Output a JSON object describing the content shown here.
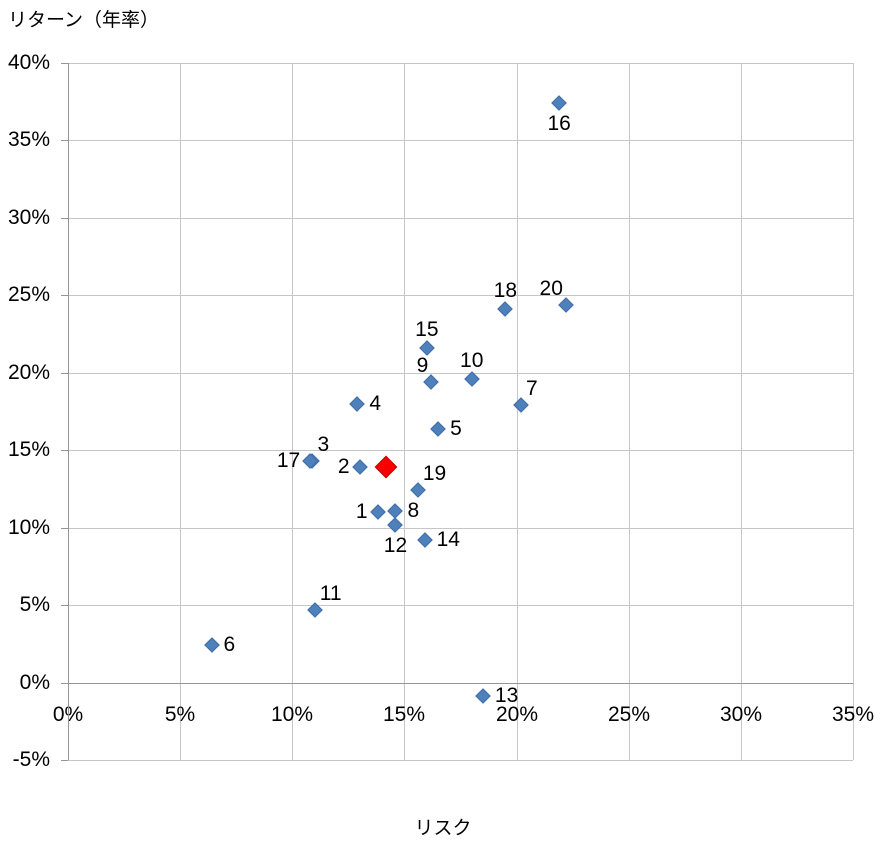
{
  "chart_data": {
    "type": "scatter",
    "title": "",
    "xlabel": "リスク",
    "ylabel": "リターン（年率）",
    "xlim": [
      0,
      35
    ],
    "ylim": [
      -5,
      40
    ],
    "x_tick_step": 5,
    "y_tick_step": 5,
    "x_tick_labels": [
      "0%",
      "5%",
      "10%",
      "15%",
      "20%",
      "25%",
      "30%",
      "35%"
    ],
    "y_tick_labels": [
      "40%",
      "35%",
      "30%",
      "25%",
      "20%",
      "15%",
      "10%",
      "5%",
      "0%",
      "-5%"
    ],
    "grid": "on",
    "legend": "none",
    "axis_unit": "%",
    "colors": {
      "background": "#ffffff",
      "gridline": "#c6c6c6",
      "axis_line": "#959595",
      "text": "#000000",
      "blue_marker": "#4e80bc",
      "red_marker": "#fb0000"
    },
    "series": [
      {
        "marker": "diamond",
        "color": "#4e80bc",
        "marker_size": 12,
        "points": [
          {
            "label": "1",
            "risk": 13.8,
            "return": 11.0,
            "label_pos": "left"
          },
          {
            "label": "2",
            "risk": 13.0,
            "return": 13.9,
            "label_pos": "left"
          },
          {
            "label": "3",
            "risk": 10.9,
            "return": 14.3,
            "label_pos": "above-right"
          },
          {
            "label": "4",
            "risk": 12.9,
            "return": 18.0,
            "label_pos": "right"
          },
          {
            "label": "5",
            "risk": 16.5,
            "return": 16.4,
            "label_pos": "right"
          },
          {
            "label": "6",
            "risk": 6.4,
            "return": 2.4,
            "label_pos": "right"
          },
          {
            "label": "7",
            "risk": 20.2,
            "return": 17.9,
            "label_pos": "above-right"
          },
          {
            "label": "8",
            "risk": 14.6,
            "return": 11.1,
            "label_pos": "right"
          },
          {
            "label": "9",
            "risk": 16.2,
            "return": 19.4,
            "label_pos": "above-left"
          },
          {
            "label": "10",
            "risk": 18.0,
            "return": 19.6,
            "label_pos": "above"
          },
          {
            "label": "11",
            "risk": 11.0,
            "return": 4.7,
            "label_pos": "above-right"
          },
          {
            "label": "12",
            "risk": 14.6,
            "return": 10.2,
            "label_pos": "below"
          },
          {
            "label": "13",
            "risk": 18.5,
            "return": -0.9,
            "label_pos": "right"
          },
          {
            "label": "14",
            "risk": 15.9,
            "return": 9.2,
            "label_pos": "right"
          },
          {
            "label": "15",
            "risk": 16.0,
            "return": 21.6,
            "label_pos": "above"
          },
          {
            "label": "16",
            "risk": 21.9,
            "return": 37.4,
            "label_pos": "below"
          },
          {
            "label": "17",
            "risk": 10.8,
            "return": 14.3,
            "label_pos": "left"
          },
          {
            "label": "18",
            "risk": 19.5,
            "return": 24.1,
            "label_pos": "above"
          },
          {
            "label": "19",
            "risk": 15.6,
            "return": 12.4,
            "label_pos": "above-right"
          },
          {
            "label": "20",
            "risk": 22.2,
            "return": 24.4,
            "label_pos": "above-left"
          }
        ]
      },
      {
        "marker": "diamond",
        "color": "#fb0000",
        "marker_size": 20,
        "points": [
          {
            "label": "",
            "risk": 14.2,
            "return": 13.9,
            "label_pos": "none"
          }
        ]
      }
    ]
  }
}
